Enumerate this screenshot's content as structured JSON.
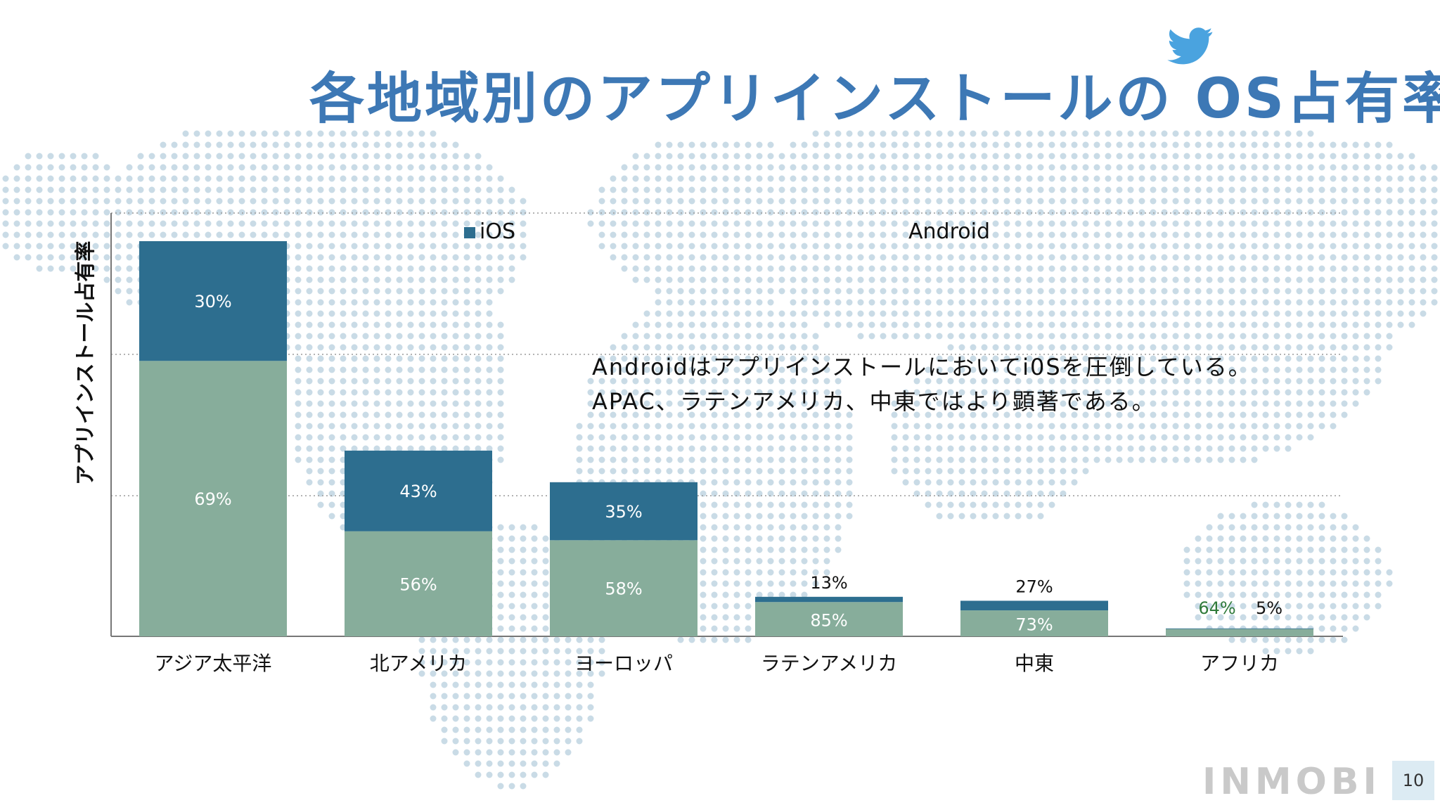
{
  "title": "各地域別のアプリインストールの OS占有率",
  "colors": {
    "ios": "#2d6e8f",
    "android": "#87ad9b",
    "title": "#3d78b5",
    "dot": "#c9dbe6"
  },
  "legend": {
    "ios_label": "iOS",
    "android_label": "Android"
  },
  "annotation": {
    "line1": "Androidはアプリインストールにおいてi0Sを圧倒している。",
    "line2": "APAC、ラテンアメリカ、中東ではより顕著である。"
  },
  "footer": {
    "logo": "INMOBI",
    "page_number": "10"
  },
  "chart_data": {
    "type": "bar",
    "stacked": true,
    "ylabel": "アプリインストール占有率",
    "categories": [
      "アジア太平洋",
      "北アメリカ",
      "ヨーロッパ",
      "ラテンアメリカ",
      "中東",
      "アフリカ"
    ],
    "series": [
      {
        "name": "Android",
        "values": [
          69,
          56,
          58,
          85,
          73,
          64
        ],
        "labels": [
          "69%",
          "56%",
          "58%",
          "85%",
          "73%",
          "64%"
        ]
      },
      {
        "name": "iOS",
        "values": [
          30,
          43,
          35,
          13,
          27,
          5
        ],
        "labels": [
          "30%",
          "43%",
          "35%",
          "13%",
          "27%",
          "5%"
        ]
      }
    ],
    "relative_heights": [
      1.0,
      0.47,
      0.39,
      0.1,
      0.09,
      0.02
    ],
    "grid": "horizontal dotted",
    "legend_position": "top"
  }
}
